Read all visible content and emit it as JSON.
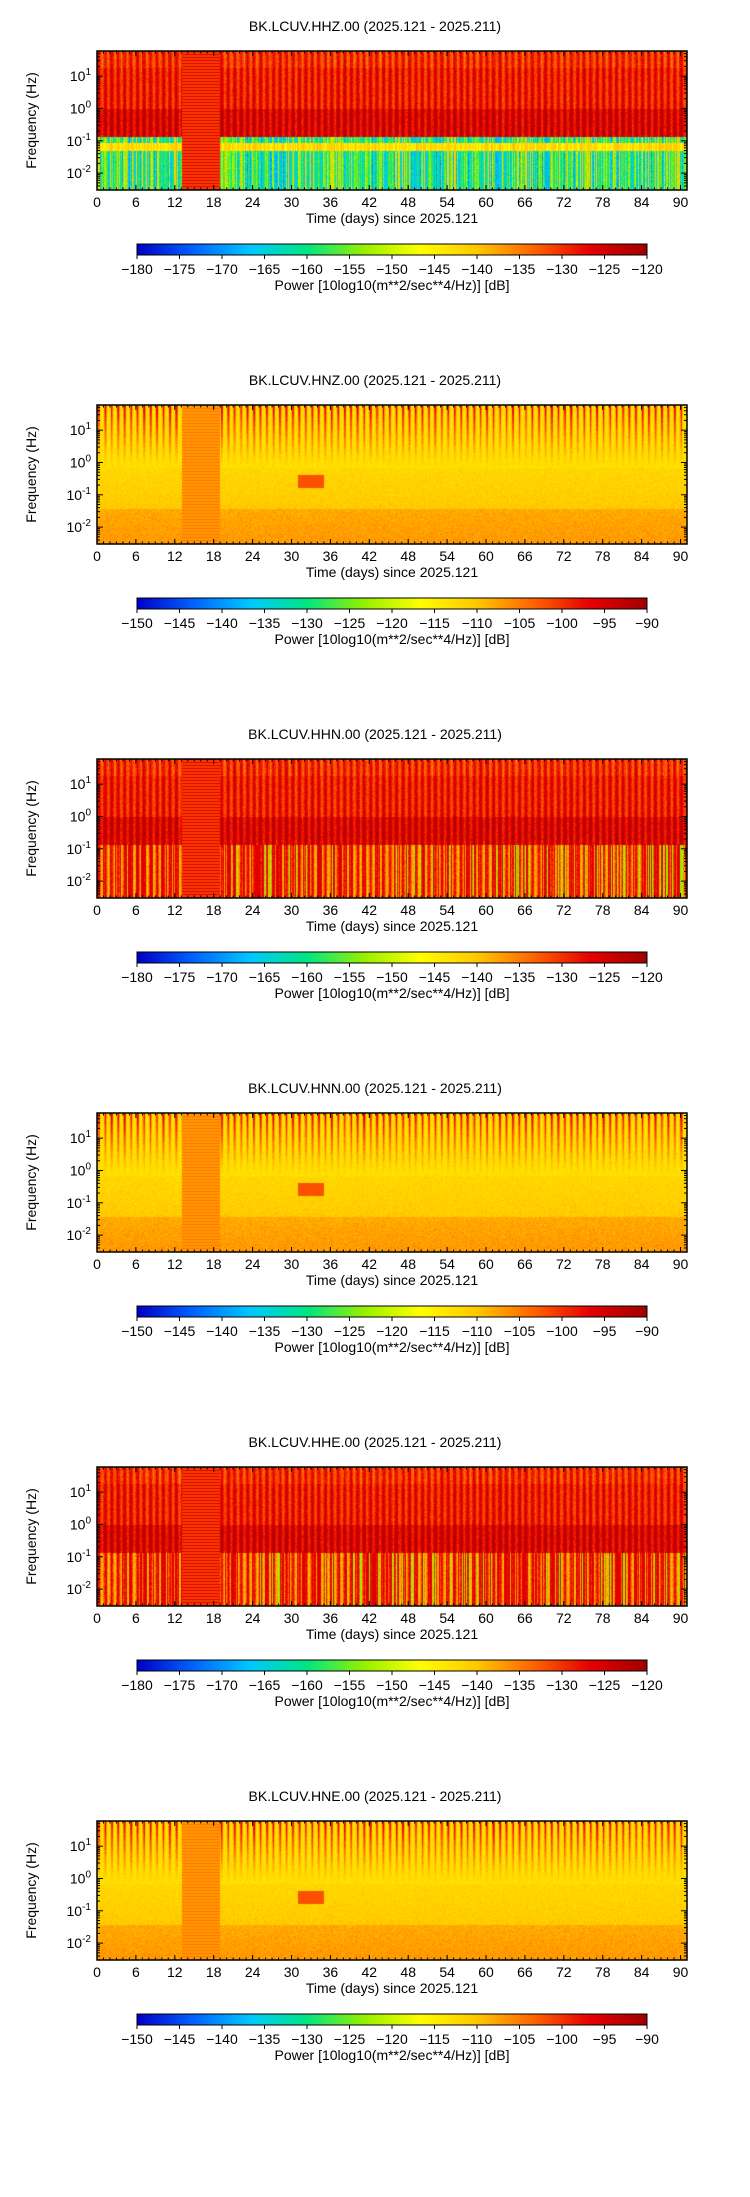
{
  "chart_data": [
    {
      "type": "heatmap",
      "title": "BK.LCUV.HHZ.00 (2025.121 - 2025.211)",
      "xlabel": "Time (days) since 2025.121",
      "ylabel": "Frequency (Hz)",
      "xlim": [
        0,
        91
      ],
      "ylim": [
        0.003,
        60
      ],
      "y_scale": "log",
      "x_ticks": [
        "0",
        "6",
        "12",
        "18",
        "24",
        "30",
        "36",
        "42",
        "48",
        "54",
        "60",
        "66",
        "72",
        "78",
        "84",
        "90"
      ],
      "y_ticks": [
        {
          "base": "10",
          "exp": "1"
        },
        {
          "base": "10",
          "exp": "0"
        },
        {
          "base": "10",
          "exp": "-1"
        },
        {
          "base": "10",
          "exp": "-2"
        }
      ],
      "colorbar": {
        "label": "Power [10log10(m**2/sec**4/Hz)] [dB]",
        "min": -180,
        "max": -120,
        "ticks": [
          "−180",
          "−175",
          "−170",
          "−165",
          "−160",
          "−155",
          "−150",
          "−145",
          "−140",
          "−135",
          "−130",
          "−125",
          "−120"
        ]
      },
      "colormap": [
        "#0000c8",
        "#0064ff",
        "#00c8ff",
        "#00e682",
        "#96f000",
        "#ffff00",
        "#ffc800",
        "#ff6400",
        "#e60000",
        "#a00000"
      ]
    },
    {
      "type": "heatmap",
      "title": "BK.LCUV.HNZ.00 (2025.121 - 2025.211)",
      "xlabel": "Time (days) since 2025.121",
      "ylabel": "Frequency (Hz)",
      "xlim": [
        0,
        91
      ],
      "ylim": [
        0.003,
        60
      ],
      "y_scale": "log",
      "x_ticks": [
        "0",
        "6",
        "12",
        "18",
        "24",
        "30",
        "36",
        "42",
        "48",
        "54",
        "60",
        "66",
        "72",
        "78",
        "84",
        "90"
      ],
      "y_ticks": [
        {
          "base": "10",
          "exp": "1"
        },
        {
          "base": "10",
          "exp": "0"
        },
        {
          "base": "10",
          "exp": "-1"
        },
        {
          "base": "10",
          "exp": "-2"
        }
      ],
      "colorbar": {
        "label": "Power [10log10(m**2/sec**4/Hz)] [dB]",
        "min": -150,
        "max": -90,
        "ticks": [
          "−150",
          "−145",
          "−140",
          "−135",
          "−130",
          "−125",
          "−120",
          "−115",
          "−110",
          "−105",
          "−100",
          "−95",
          "−90"
        ]
      },
      "colormap": [
        "#0000c8",
        "#0064ff",
        "#00c8ff",
        "#00e682",
        "#96f000",
        "#ffff00",
        "#ffc800",
        "#ff6400",
        "#e60000",
        "#a00000"
      ]
    },
    {
      "type": "heatmap",
      "title": "BK.LCUV.HHN.00 (2025.121 - 2025.211)",
      "xlabel": "Time (days) since 2025.121",
      "ylabel": "Frequency (Hz)",
      "xlim": [
        0,
        91
      ],
      "ylim": [
        0.003,
        60
      ],
      "y_scale": "log",
      "x_ticks": [
        "0",
        "6",
        "12",
        "18",
        "24",
        "30",
        "36",
        "42",
        "48",
        "54",
        "60",
        "66",
        "72",
        "78",
        "84",
        "90"
      ],
      "y_ticks": [
        {
          "base": "10",
          "exp": "1"
        },
        {
          "base": "10",
          "exp": "0"
        },
        {
          "base": "10",
          "exp": "-1"
        },
        {
          "base": "10",
          "exp": "-2"
        }
      ],
      "colorbar": {
        "label": "Power [10log10(m**2/sec**4/Hz)] [dB]",
        "min": -180,
        "max": -120,
        "ticks": [
          "−180",
          "−175",
          "−170",
          "−165",
          "−160",
          "−155",
          "−150",
          "−145",
          "−140",
          "−135",
          "−130",
          "−125",
          "−120"
        ]
      },
      "colormap": [
        "#0000c8",
        "#0064ff",
        "#00c8ff",
        "#00e682",
        "#96f000",
        "#ffff00",
        "#ffc800",
        "#ff6400",
        "#e60000",
        "#a00000"
      ]
    },
    {
      "type": "heatmap",
      "title": "BK.LCUV.HNN.00 (2025.121 - 2025.211)",
      "xlabel": "Time (days) since 2025.121",
      "ylabel": "Frequency (Hz)",
      "xlim": [
        0,
        91
      ],
      "ylim": [
        0.003,
        60
      ],
      "y_scale": "log",
      "x_ticks": [
        "0",
        "6",
        "12",
        "18",
        "24",
        "30",
        "36",
        "42",
        "48",
        "54",
        "60",
        "66",
        "72",
        "78",
        "84",
        "90"
      ],
      "y_ticks": [
        {
          "base": "10",
          "exp": "1"
        },
        {
          "base": "10",
          "exp": "0"
        },
        {
          "base": "10",
          "exp": "-1"
        },
        {
          "base": "10",
          "exp": "-2"
        }
      ],
      "colorbar": {
        "label": "Power [10log10(m**2/sec**4/Hz)] [dB]",
        "min": -150,
        "max": -90,
        "ticks": [
          "−150",
          "−145",
          "−140",
          "−135",
          "−130",
          "−125",
          "−120",
          "−115",
          "−110",
          "−105",
          "−100",
          "−95",
          "−90"
        ]
      },
      "colormap": [
        "#0000c8",
        "#0064ff",
        "#00c8ff",
        "#00e682",
        "#96f000",
        "#ffff00",
        "#ffc800",
        "#ff6400",
        "#e60000",
        "#a00000"
      ]
    },
    {
      "type": "heatmap",
      "title": "BK.LCUV.HHE.00 (2025.121 - 2025.211)",
      "xlabel": "Time (days) since 2025.121",
      "ylabel": "Frequency (Hz)",
      "xlim": [
        0,
        91
      ],
      "ylim": [
        0.003,
        60
      ],
      "y_scale": "log",
      "x_ticks": [
        "0",
        "6",
        "12",
        "18",
        "24",
        "30",
        "36",
        "42",
        "48",
        "54",
        "60",
        "66",
        "72",
        "78",
        "84",
        "90"
      ],
      "y_ticks": [
        {
          "base": "10",
          "exp": "1"
        },
        {
          "base": "10",
          "exp": "0"
        },
        {
          "base": "10",
          "exp": "-1"
        },
        {
          "base": "10",
          "exp": "-2"
        }
      ],
      "colorbar": {
        "label": "Power [10log10(m**2/sec**4/Hz)] [dB]",
        "min": -180,
        "max": -120,
        "ticks": [
          "−180",
          "−175",
          "−170",
          "−165",
          "−160",
          "−155",
          "−150",
          "−145",
          "−140",
          "−135",
          "−130",
          "−125",
          "−120"
        ]
      },
      "colormap": [
        "#0000c8",
        "#0064ff",
        "#00c8ff",
        "#00e682",
        "#96f000",
        "#ffff00",
        "#ffc800",
        "#ff6400",
        "#e60000",
        "#a00000"
      ]
    },
    {
      "type": "heatmap",
      "title": "BK.LCUV.HNE.00 (2025.121 - 2025.211)",
      "xlabel": "Time (days) since 2025.121",
      "ylabel": "Frequency (Hz)",
      "xlim": [
        0,
        91
      ],
      "ylim": [
        0.003,
        60
      ],
      "y_scale": "log",
      "x_ticks": [
        "0",
        "6",
        "12",
        "18",
        "24",
        "30",
        "36",
        "42",
        "48",
        "54",
        "60",
        "66",
        "72",
        "78",
        "84",
        "90"
      ],
      "y_ticks": [
        {
          "base": "10",
          "exp": "1"
        },
        {
          "base": "10",
          "exp": "0"
        },
        {
          "base": "10",
          "exp": "-1"
        },
        {
          "base": "10",
          "exp": "-2"
        }
      ],
      "colorbar": {
        "label": "Power [10log10(m**2/sec**4/Hz)] [dB]",
        "min": -150,
        "max": -90,
        "ticks": [
          "−150",
          "−145",
          "−140",
          "−135",
          "−130",
          "−125",
          "−120",
          "−115",
          "−110",
          "−105",
          "−100",
          "−95",
          "−90"
        ]
      },
      "colormap": [
        "#0000c8",
        "#0064ff",
        "#00c8ff",
        "#00e682",
        "#96f000",
        "#ffff00",
        "#ffc800",
        "#ff6400",
        "#e60000",
        "#a00000"
      ]
    }
  ]
}
